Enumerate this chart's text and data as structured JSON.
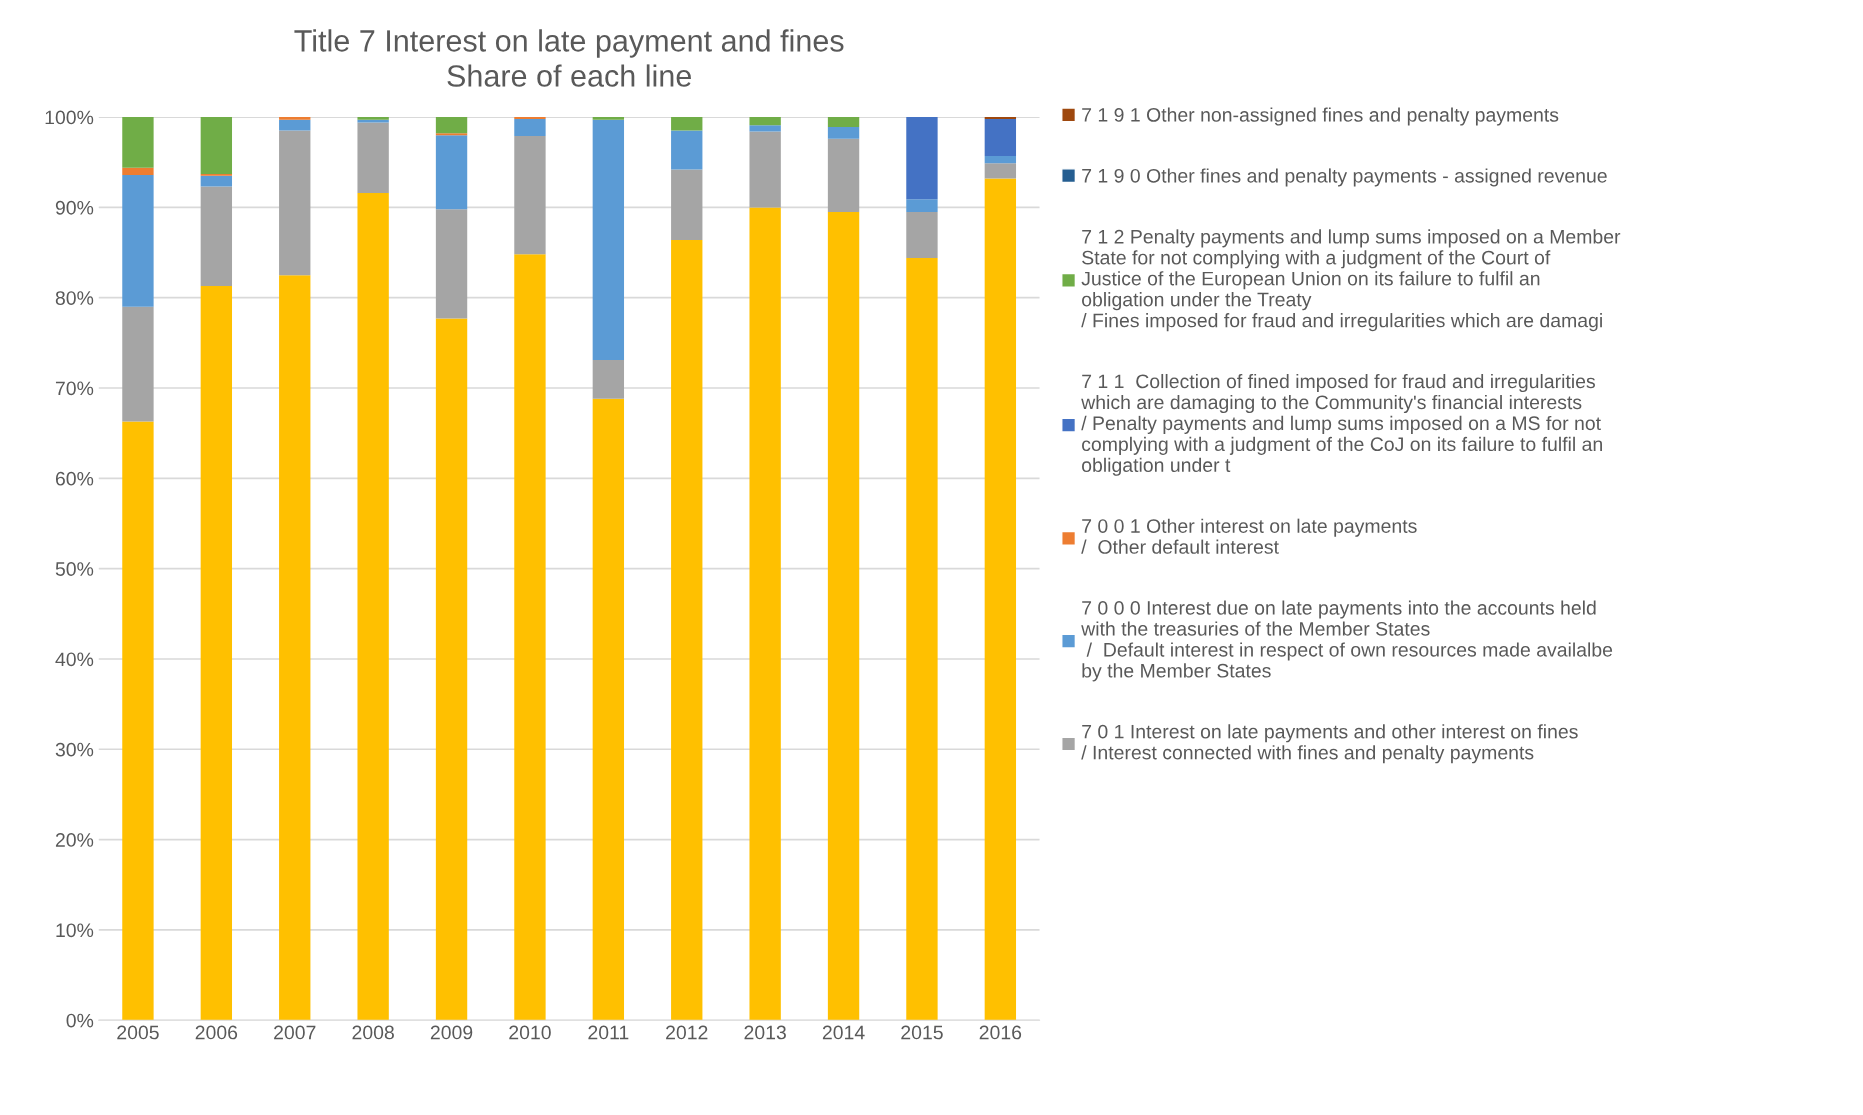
{
  "chart_data": {
    "type": "bar",
    "stacked": true,
    "title": "Title 7 Interest on late payment and fines",
    "subtitle": "Share of each line",
    "categories": [
      "2005",
      "2006",
      "2007",
      "2008",
      "2009",
      "2010",
      "2011",
      "2012",
      "2013",
      "2014",
      "2015",
      "2016"
    ],
    "series": [
      {
        "color": "#ffc000",
        "values": [
          66.3,
          81.3,
          82.5,
          91.6,
          77.7,
          84.8,
          68.8,
          86.4,
          90.0,
          89.5,
          84.4,
          93.2
        ]
      },
      {
        "name": "7 0 1 Interest on late payments and other interest on fines\n/ Interest connected with fines and penalty payments",
        "color": "#a5a5a5",
        "values": [
          12.7,
          11.0,
          16.0,
          7.8,
          12.1,
          13.1,
          4.3,
          7.8,
          8.4,
          8.1,
          5.1,
          1.7
        ]
      },
      {
        "name": "7 0 0 0 Interest due on late payments into the accounts held\nwith the treasuries of the Member States\n /  Default interest in respect of own resources made availalbe\nby the Member States",
        "color": "#5b9bd5",
        "values": [
          14.6,
          1.2,
          1.2,
          0.3,
          8.2,
          1.9,
          26.6,
          4.3,
          0.7,
          1.3,
          1.4,
          0.8
        ]
      },
      {
        "name": "7 0 0 1 Other interest on late payments\n/  Other default interest",
        "color": "#ed7d31",
        "values": [
          0.8,
          0.2,
          0.3,
          0,
          0.2,
          0.2,
          0,
          0,
          0,
          0,
          0,
          0
        ]
      },
      {
        "name": "7 1 1  Collection of fined imposed for fraud and irregularities\nwhich are damaging to the Community's financial interests\n/ Penalty payments and lump sums imposed on a MS for not\ncomplying with a judgment of the CoJ on its failure to fulfil an\nobligation under t",
        "color": "#4472c4",
        "values": [
          0,
          0,
          0,
          0,
          0,
          0,
          0,
          0,
          0,
          0,
          9.1,
          4.1
        ]
      },
      {
        "name": "7 1 2 Penalty payments and lump sums imposed on a Member\nState for not complying with a judgment of the Court of\nJustice of the European Union on its failure to fulfil an\nobligation under the Treaty\n/ Fines imposed for fraud and irregularities which are damagi",
        "color": "#70ad47",
        "values": [
          5.6,
          6.3,
          0,
          0.3,
          1.8,
          0,
          0.3,
          1.5,
          0.9,
          1.1,
          0,
          0
        ]
      },
      {
        "name": "7 1 9 0 Other fines and penalty payments - assigned revenue",
        "color": "#255e91",
        "values": [
          0,
          0,
          0,
          0,
          0,
          0,
          0,
          0,
          0,
          0,
          0,
          0
        ]
      },
      {
        "name": "7 1 9 1 Other non-assigned fines and penalty payments",
        "color": "#9e480e",
        "values": [
          0,
          0,
          0,
          0,
          0,
          0,
          0,
          0,
          0,
          0,
          0,
          0.2
        ]
      }
    ],
    "ylim": [
      0,
      100
    ],
    "yticks": [
      {
        "value": 0,
        "label": "0%"
      },
      {
        "value": 10,
        "label": "10%"
      },
      {
        "value": 20,
        "label": "20%"
      },
      {
        "value": 30,
        "label": "30%"
      },
      {
        "value": 40,
        "label": "40%"
      },
      {
        "value": 50,
        "label": "50%"
      },
      {
        "value": 60,
        "label": "60%"
      },
      {
        "value": 70,
        "label": "70%"
      },
      {
        "value": 80,
        "label": "80%"
      },
      {
        "value": 90,
        "label": "90%"
      },
      {
        "value": 100,
        "label": "100%"
      }
    ],
    "grid": "y",
    "legend": "right"
  }
}
